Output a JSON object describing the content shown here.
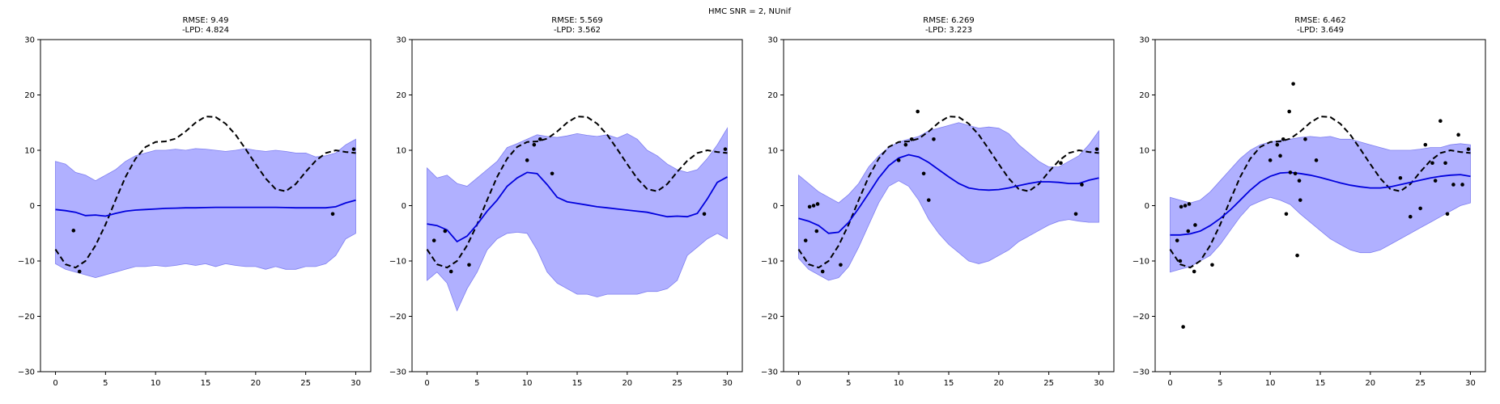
{
  "figure": {
    "title": "HMC SNR = 2, NUnif"
  },
  "style": {
    "band_color": "#b0b0ff",
    "band_edge_color": "#7f7ff0",
    "mean_color": "#0000dd",
    "truth_color": "#000000",
    "point_color": "#000000"
  },
  "chart_data": [
    {
      "type": "line",
      "title_line1": "RMSE: 9.49",
      "title_line2": "-LPD: 4.824",
      "xlim": [
        -1.5,
        31.5
      ],
      "ylim": [
        -30,
        30
      ],
      "xticks": [
        0,
        5,
        10,
        15,
        20,
        25,
        30
      ],
      "yticks": [
        -30,
        -20,
        -10,
        0,
        10,
        20,
        30
      ],
      "x": [
        0,
        1,
        2,
        3,
        4,
        5,
        6,
        7,
        8,
        9,
        10,
        11,
        12,
        13,
        14,
        15,
        16,
        17,
        18,
        19,
        20,
        21,
        22,
        23,
        24,
        25,
        26,
        27,
        28,
        29,
        30
      ],
      "series": [
        {
          "role": "predictive_mean",
          "values": [
            -0.7,
            -0.9,
            -1.2,
            -1.8,
            -1.7,
            -1.9,
            -1.4,
            -1.0,
            -0.8,
            -0.7,
            -0.6,
            -0.5,
            -0.45,
            -0.4,
            -0.4,
            -0.35,
            -0.3,
            -0.3,
            -0.3,
            -0.3,
            -0.3,
            -0.3,
            -0.3,
            -0.35,
            -0.4,
            -0.4,
            -0.4,
            -0.4,
            -0.2,
            0.5,
            1.0
          ]
        },
        {
          "role": "band_upper",
          "values": [
            8.0,
            7.5,
            6.0,
            5.5,
            4.5,
            5.5,
            6.5,
            8.0,
            9.0,
            9.5,
            10.0,
            10.0,
            10.2,
            10.0,
            10.3,
            10.2,
            10.0,
            9.8,
            10.0,
            10.3,
            10.0,
            9.8,
            10.0,
            9.8,
            9.5,
            9.5,
            8.8,
            9.0,
            9.5,
            11.0,
            12.0
          ]
        },
        {
          "role": "band_lower",
          "values": [
            -10.5,
            -11.5,
            -12.0,
            -12.5,
            -13.0,
            -12.5,
            -12.0,
            -11.5,
            -11.0,
            -11.0,
            -10.8,
            -11.0,
            -10.8,
            -10.5,
            -10.8,
            -10.5,
            -11.0,
            -10.5,
            -10.8,
            -11.0,
            -11.0,
            -11.5,
            -11.0,
            -11.5,
            -11.5,
            -11.0,
            -11.0,
            -10.5,
            -9.0,
            -6.0,
            -5.0
          ]
        },
        {
          "role": "ground_truth",
          "values": [
            -7.9,
            -10.6,
            -11.2,
            -10.0,
            -7.2,
            -3.4,
            1.0,
            5.2,
            8.5,
            10.6,
            11.5,
            11.6,
            12.1,
            13.4,
            15.0,
            16.1,
            16.0,
            14.8,
            12.8,
            10.2,
            7.5,
            4.9,
            3.0,
            2.6,
            3.9,
            6.1,
            8.1,
            9.5,
            10.0,
            9.7,
            9.5
          ]
        }
      ],
      "observations": [
        {
          "x": 1.8,
          "y": -4.5
        },
        {
          "x": 2.4,
          "y": -11.9
        },
        {
          "x": 27.7,
          "y": -1.5
        },
        {
          "x": 29.8,
          "y": 10.2
        }
      ]
    },
    {
      "type": "line",
      "title_line1": "RMSE: 5.569",
      "title_line2": "-LPD: 3.562",
      "xlim": [
        -1.5,
        31.5
      ],
      "ylim": [
        -30,
        30
      ],
      "xticks": [
        0,
        5,
        10,
        15,
        20,
        25,
        30
      ],
      "yticks": [
        -30,
        -20,
        -10,
        0,
        10,
        20,
        30
      ],
      "x": [
        0,
        1,
        2,
        3,
        4,
        5,
        6,
        7,
        8,
        9,
        10,
        11,
        12,
        13,
        14,
        15,
        16,
        17,
        18,
        19,
        20,
        21,
        22,
        23,
        24,
        25,
        26,
        27,
        28,
        29,
        30
      ],
      "series": [
        {
          "role": "predictive_mean",
          "values": [
            -3.3,
            -3.6,
            -4.4,
            -6.5,
            -5.5,
            -3.4,
            -1.0,
            1.0,
            3.5,
            5.0,
            6.0,
            5.8,
            3.8,
            1.5,
            0.7,
            0.4,
            0.1,
            -0.2,
            -0.4,
            -0.6,
            -0.8,
            -1.0,
            -1.2,
            -1.6,
            -2.0,
            -1.9,
            -2.0,
            -1.4,
            1.2,
            4.2,
            5.2
          ]
        },
        {
          "role": "band_upper",
          "values": [
            6.8,
            5.0,
            5.5,
            4.0,
            3.5,
            5.0,
            6.5,
            8.0,
            10.5,
            11.2,
            12.0,
            12.8,
            12.5,
            12.3,
            12.6,
            13.0,
            12.7,
            12.5,
            12.8,
            12.2,
            13.0,
            12.0,
            10.0,
            9.0,
            7.5,
            6.5,
            6.0,
            6.5,
            8.5,
            11.0,
            14.0
          ]
        },
        {
          "role": "band_lower",
          "values": [
            -13.5,
            -12.0,
            -14.0,
            -19.0,
            -15.0,
            -12.0,
            -8.0,
            -6.0,
            -5.0,
            -4.8,
            -5.0,
            -8.0,
            -12.0,
            -14.0,
            -15.0,
            -16.0,
            -16.0,
            -16.5,
            -16.0,
            -16.0,
            -16.0,
            -16.0,
            -15.5,
            -15.5,
            -15.0,
            -13.5,
            -9.0,
            -7.5,
            -6.0,
            -5.0,
            -6.0
          ]
        },
        {
          "role": "ground_truth",
          "values": [
            -7.9,
            -10.6,
            -11.2,
            -10.0,
            -7.2,
            -3.4,
            1.0,
            5.2,
            8.5,
            10.6,
            11.5,
            11.6,
            12.1,
            13.4,
            15.0,
            16.1,
            16.0,
            14.8,
            12.8,
            10.2,
            7.5,
            4.9,
            3.0,
            2.6,
            3.9,
            6.1,
            8.1,
            9.5,
            10.0,
            9.7,
            9.5
          ]
        }
      ],
      "observations": [
        {
          "x": 0.7,
          "y": -6.3
        },
        {
          "x": 1.8,
          "y": -4.6
        },
        {
          "x": 2.4,
          "y": -11.9
        },
        {
          "x": 4.2,
          "y": -10.7
        },
        {
          "x": 10.0,
          "y": 8.2
        },
        {
          "x": 10.7,
          "y": 11.0
        },
        {
          "x": 11.3,
          "y": 12.0
        },
        {
          "x": 12.5,
          "y": 5.8
        },
        {
          "x": 27.7,
          "y": -1.5
        },
        {
          "x": 29.8,
          "y": 10.2
        }
      ]
    },
    {
      "type": "line",
      "title_line1": "RMSE: 6.269",
      "title_line2": "-LPD: 3.223",
      "xlim": [
        -1.5,
        31.5
      ],
      "ylim": [
        -30,
        30
      ],
      "xticks": [
        0,
        5,
        10,
        15,
        20,
        25,
        30
      ],
      "yticks": [
        -30,
        -20,
        -10,
        0,
        10,
        20,
        30
      ],
      "x": [
        0,
        1,
        2,
        3,
        4,
        5,
        6,
        7,
        8,
        9,
        10,
        11,
        12,
        13,
        14,
        15,
        16,
        17,
        18,
        19,
        20,
        21,
        22,
        23,
        24,
        25,
        26,
        27,
        28,
        29,
        30
      ],
      "series": [
        {
          "role": "predictive_mean",
          "values": [
            -2.3,
            -2.8,
            -3.6,
            -5.0,
            -4.8,
            -3.0,
            -0.5,
            2.2,
            5.0,
            7.2,
            8.6,
            9.2,
            8.8,
            7.8,
            6.5,
            5.2,
            4.0,
            3.2,
            2.9,
            2.8,
            2.9,
            3.2,
            3.6,
            4.0,
            4.3,
            4.3,
            4.2,
            4.0,
            4.0,
            4.6,
            5.0
          ]
        },
        {
          "role": "band_upper",
          "values": [
            5.5,
            4.0,
            2.5,
            1.5,
            0.5,
            2.0,
            4.0,
            7.0,
            9.0,
            10.5,
            11.5,
            12.0,
            12.5,
            13.5,
            14.0,
            14.5,
            15.0,
            14.5,
            14.0,
            14.2,
            14.0,
            13.0,
            11.0,
            9.5,
            8.0,
            7.0,
            7.0,
            8.0,
            9.0,
            11.0,
            13.5
          ]
        },
        {
          "role": "band_lower",
          "values": [
            -9.5,
            -11.5,
            -12.5,
            -13.5,
            -13.0,
            -11.0,
            -7.5,
            -3.5,
            0.5,
            3.5,
            4.5,
            3.5,
            1.0,
            -2.5,
            -5.0,
            -7.0,
            -8.5,
            -10.0,
            -10.5,
            -10.0,
            -9.0,
            -8.0,
            -6.5,
            -5.5,
            -4.5,
            -3.5,
            -2.8,
            -2.5,
            -2.8,
            -3.0,
            -3.0
          ]
        },
        {
          "role": "ground_truth",
          "values": [
            -7.9,
            -10.6,
            -11.2,
            -10.0,
            -7.2,
            -3.4,
            1.0,
            5.2,
            8.5,
            10.6,
            11.5,
            11.6,
            12.1,
            13.4,
            15.0,
            16.1,
            16.0,
            14.8,
            12.8,
            10.2,
            7.5,
            4.9,
            3.0,
            2.6,
            3.9,
            6.1,
            8.1,
            9.5,
            10.0,
            9.7,
            9.5
          ]
        }
      ],
      "observations": [
        {
          "x": 0.7,
          "y": -6.3
        },
        {
          "x": 1.1,
          "y": -0.2
        },
        {
          "x": 1.5,
          "y": 0.0
        },
        {
          "x": 1.8,
          "y": -4.6
        },
        {
          "x": 1.9,
          "y": 0.3
        },
        {
          "x": 2.4,
          "y": -11.9
        },
        {
          "x": 4.2,
          "y": -10.7
        },
        {
          "x": 10.0,
          "y": 8.2
        },
        {
          "x": 10.7,
          "y": 11.0
        },
        {
          "x": 11.3,
          "y": 12.0
        },
        {
          "x": 11.9,
          "y": 17.0
        },
        {
          "x": 12.5,
          "y": 5.8
        },
        {
          "x": 13.0,
          "y": 1.0
        },
        {
          "x": 13.5,
          "y": 12.0
        },
        {
          "x": 26.2,
          "y": 7.7
        },
        {
          "x": 27.7,
          "y": -1.5
        },
        {
          "x": 28.3,
          "y": 3.8
        },
        {
          "x": 29.8,
          "y": 10.2
        }
      ]
    },
    {
      "type": "line",
      "title_line1": "RMSE: 6.462",
      "title_line2": "-LPD: 3.649",
      "xlim": [
        -1.5,
        31.5
      ],
      "ylim": [
        -30,
        30
      ],
      "xticks": [
        0,
        5,
        10,
        15,
        20,
        25,
        30
      ],
      "yticks": [
        -30,
        -20,
        -10,
        0,
        10,
        20,
        30
      ],
      "x": [
        0,
        1,
        2,
        3,
        4,
        5,
        6,
        7,
        8,
        9,
        10,
        11,
        12,
        13,
        14,
        15,
        16,
        17,
        18,
        19,
        20,
        21,
        22,
        23,
        24,
        25,
        26,
        27,
        28,
        29,
        30
      ],
      "series": [
        {
          "role": "predictive_mean",
          "values": [
            -5.3,
            -5.3,
            -5.1,
            -4.6,
            -3.6,
            -2.3,
            -0.8,
            1.0,
            2.8,
            4.3,
            5.3,
            5.9,
            6.0,
            5.8,
            5.5,
            5.1,
            4.6,
            4.1,
            3.7,
            3.4,
            3.2,
            3.2,
            3.4,
            3.8,
            4.2,
            4.6,
            5.0,
            5.3,
            5.5,
            5.6,
            5.3
          ]
        },
        {
          "role": "band_upper",
          "values": [
            1.5,
            1.0,
            0.5,
            1.0,
            2.5,
            4.5,
            6.5,
            8.5,
            10.0,
            11.0,
            11.5,
            11.8,
            12.0,
            12.3,
            12.5,
            12.3,
            12.5,
            12.0,
            12.0,
            11.5,
            11.0,
            10.5,
            10.0,
            10.0,
            10.0,
            10.2,
            10.5,
            10.5,
            11.0,
            11.2,
            11.0
          ]
        },
        {
          "role": "band_lower",
          "values": [
            -12.0,
            -11.5,
            -11.0,
            -10.0,
            -9.0,
            -7.0,
            -4.5,
            -2.0,
            0.0,
            0.8,
            1.5,
            1.0,
            0.2,
            -1.5,
            -3.0,
            -4.5,
            -6.0,
            -7.0,
            -8.0,
            -8.5,
            -8.5,
            -8.0,
            -7.0,
            -6.0,
            -5.0,
            -4.0,
            -3.0,
            -2.0,
            -1.0,
            0.0,
            0.5
          ]
        },
        {
          "role": "ground_truth",
          "values": [
            -7.9,
            -10.6,
            -11.2,
            -10.0,
            -7.2,
            -3.4,
            1.0,
            5.2,
            8.5,
            10.6,
            11.5,
            11.6,
            12.1,
            13.4,
            15.0,
            16.1,
            16.0,
            14.8,
            12.8,
            10.2,
            7.5,
            4.9,
            3.0,
            2.6,
            3.9,
            6.1,
            8.1,
            9.5,
            10.0,
            9.7,
            9.5
          ]
        }
      ],
      "observations": [
        {
          "x": 0.7,
          "y": -6.3
        },
        {
          "x": 1.0,
          "y": -10.0
        },
        {
          "x": 1.1,
          "y": -0.2
        },
        {
          "x": 1.3,
          "y": -21.9
        },
        {
          "x": 1.5,
          "y": 0.0
        },
        {
          "x": 1.8,
          "y": -4.6
        },
        {
          "x": 1.9,
          "y": 0.3
        },
        {
          "x": 2.4,
          "y": -11.9
        },
        {
          "x": 2.5,
          "y": -3.5
        },
        {
          "x": 4.2,
          "y": -10.7
        },
        {
          "x": 10.0,
          "y": 8.2
        },
        {
          "x": 10.7,
          "y": 11.0
        },
        {
          "x": 11.0,
          "y": 9.0
        },
        {
          "x": 11.3,
          "y": 12.0
        },
        {
          "x": 11.6,
          "y": -1.5
        },
        {
          "x": 11.9,
          "y": 17.0
        },
        {
          "x": 12.0,
          "y": 6.0
        },
        {
          "x": 12.3,
          "y": 22.0
        },
        {
          "x": 12.5,
          "y": 5.8
        },
        {
          "x": 12.7,
          "y": -9.0
        },
        {
          "x": 12.9,
          "y": 4.5
        },
        {
          "x": 13.0,
          "y": 1.0
        },
        {
          "x": 13.5,
          "y": 12.0
        },
        {
          "x": 14.6,
          "y": 8.2
        },
        {
          "x": 23.0,
          "y": 5.0
        },
        {
          "x": 24.0,
          "y": -2.0
        },
        {
          "x": 25.0,
          "y": -0.5
        },
        {
          "x": 25.5,
          "y": 11.0
        },
        {
          "x": 26.2,
          "y": 7.7
        },
        {
          "x": 26.5,
          "y": 4.5
        },
        {
          "x": 27.0,
          "y": 15.3
        },
        {
          "x": 27.5,
          "y": 7.7
        },
        {
          "x": 27.7,
          "y": -1.5
        },
        {
          "x": 28.3,
          "y": 3.8
        },
        {
          "x": 28.8,
          "y": 12.8
        },
        {
          "x": 29.2,
          "y": 3.8
        },
        {
          "x": 29.8,
          "y": 10.2
        }
      ]
    }
  ]
}
